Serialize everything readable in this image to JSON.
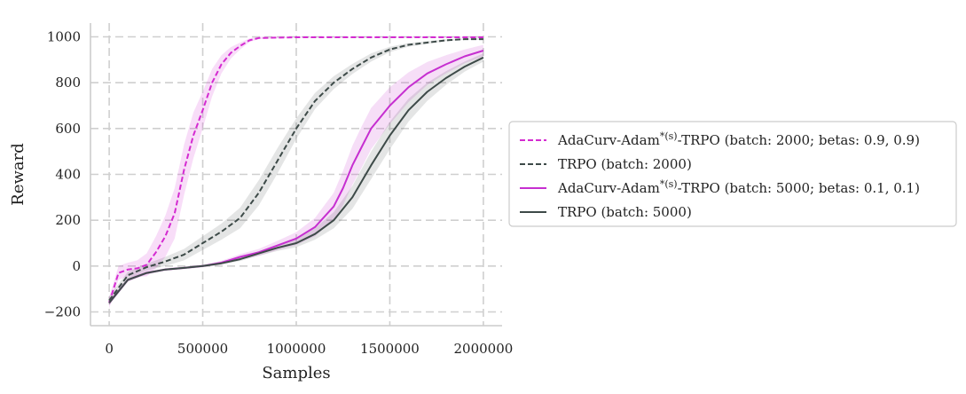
{
  "chart_data": {
    "type": "line",
    "xlabel": "Samples",
    "ylabel": "Reward",
    "xlim": [
      -100000,
      2100000
    ],
    "ylim": [
      -260,
      1060
    ],
    "x_ticks": [
      0,
      500000,
      1000000,
      1500000,
      2000000
    ],
    "x_tick_labels": [
      "0",
      "500000",
      "1000000",
      "1500000",
      "2000000"
    ],
    "y_ticks": [
      -200,
      0,
      200,
      400,
      600,
      800,
      1000
    ],
    "y_tick_labels": [
      "−200",
      "0",
      "200",
      "400",
      "600",
      "800",
      "1000"
    ],
    "grid": true,
    "legend_position": "right",
    "series": [
      {
        "name": "AdaCurv-Adam*(s)-TRPO (batch: 2000; betas: 0.9, 0.9)",
        "name_prefix": "AdaCurv-Adam",
        "name_superscript": "*(s)",
        "name_suffix": "-TRPO (batch: 2000; betas: 0.9, 0.9)",
        "color": "#d42bd1",
        "line_style": "dashed",
        "x": [
          0,
          50000,
          100000,
          150000,
          200000,
          250000,
          300000,
          350000,
          400000,
          450000,
          500000,
          550000,
          600000,
          650000,
          700000,
          750000,
          800000,
          1000000,
          1500000,
          2000000
        ],
        "y": [
          -160,
          -30,
          -15,
          -10,
          5,
          60,
          130,
          230,
          420,
          570,
          680,
          800,
          880,
          930,
          960,
          985,
          995,
          998,
          998,
          998
        ],
        "band": [
          25,
          30,
          30,
          35,
          50,
          70,
          90,
          110,
          110,
          100,
          80,
          60,
          40,
          25,
          15,
          8,
          5,
          2,
          2,
          2
        ]
      },
      {
        "name": "TRPO (batch: 2000)",
        "name_prefix": "TRPO (batch: 2000)",
        "name_superscript": "",
        "name_suffix": "",
        "color": "#3d4a48",
        "line_style": "dashed",
        "x": [
          0,
          100000,
          200000,
          300000,
          400000,
          500000,
          600000,
          700000,
          800000,
          900000,
          1000000,
          1100000,
          1200000,
          1300000,
          1400000,
          1500000,
          1600000,
          1700000,
          1800000,
          1900000,
          2000000
        ],
        "y": [
          -150,
          -40,
          -5,
          20,
          50,
          100,
          150,
          210,
          320,
          460,
          600,
          720,
          800,
          860,
          910,
          945,
          965,
          975,
          985,
          990,
          990
        ],
        "band": [
          20,
          15,
          15,
          20,
          25,
          30,
          35,
          45,
          55,
          55,
          45,
          35,
          28,
          22,
          18,
          12,
          8,
          6,
          4,
          3,
          3
        ]
      },
      {
        "name": "AdaCurv-Adam*(s)-TRPO (batch: 5000; betas: 0.1, 0.1)",
        "name_prefix": "AdaCurv-Adam",
        "name_superscript": "*(s)",
        "name_suffix": "-TRPO (batch: 5000; betas: 0.1, 0.1)",
        "color": "#c62fd0",
        "line_style": "solid",
        "x": [
          0,
          100000,
          200000,
          300000,
          400000,
          500000,
          600000,
          700000,
          800000,
          900000,
          1000000,
          1100000,
          1200000,
          1250000,
          1300000,
          1350000,
          1400000,
          1500000,
          1600000,
          1700000,
          1800000,
          1900000,
          2000000
        ],
        "y": [
          -160,
          -60,
          -30,
          -15,
          -8,
          0,
          15,
          40,
          60,
          90,
          120,
          170,
          260,
          340,
          440,
          520,
          600,
          700,
          780,
          840,
          880,
          915,
          940
        ],
        "band": [
          10,
          8,
          6,
          5,
          5,
          5,
          8,
          12,
          15,
          20,
          28,
          40,
          60,
          75,
          85,
          90,
          90,
          80,
          65,
          50,
          40,
          30,
          25
        ]
      },
      {
        "name": "TRPO (batch: 5000)",
        "name_prefix": "TRPO (batch: 5000)",
        "name_superscript": "",
        "name_suffix": "",
        "color": "#3d4a48",
        "line_style": "solid",
        "x": [
          0,
          100000,
          200000,
          300000,
          400000,
          500000,
          600000,
          700000,
          800000,
          900000,
          1000000,
          1100000,
          1200000,
          1300000,
          1400000,
          1500000,
          1600000,
          1700000,
          1800000,
          1900000,
          2000000
        ],
        "y": [
          -160,
          -60,
          -30,
          -15,
          -8,
          0,
          12,
          30,
          55,
          80,
          100,
          140,
          200,
          300,
          440,
          570,
          680,
          760,
          820,
          870,
          910
        ],
        "band": [
          10,
          8,
          6,
          5,
          5,
          5,
          6,
          8,
          10,
          14,
          18,
          25,
          35,
          50,
          60,
          60,
          50,
          40,
          30,
          22,
          18
        ]
      }
    ]
  }
}
